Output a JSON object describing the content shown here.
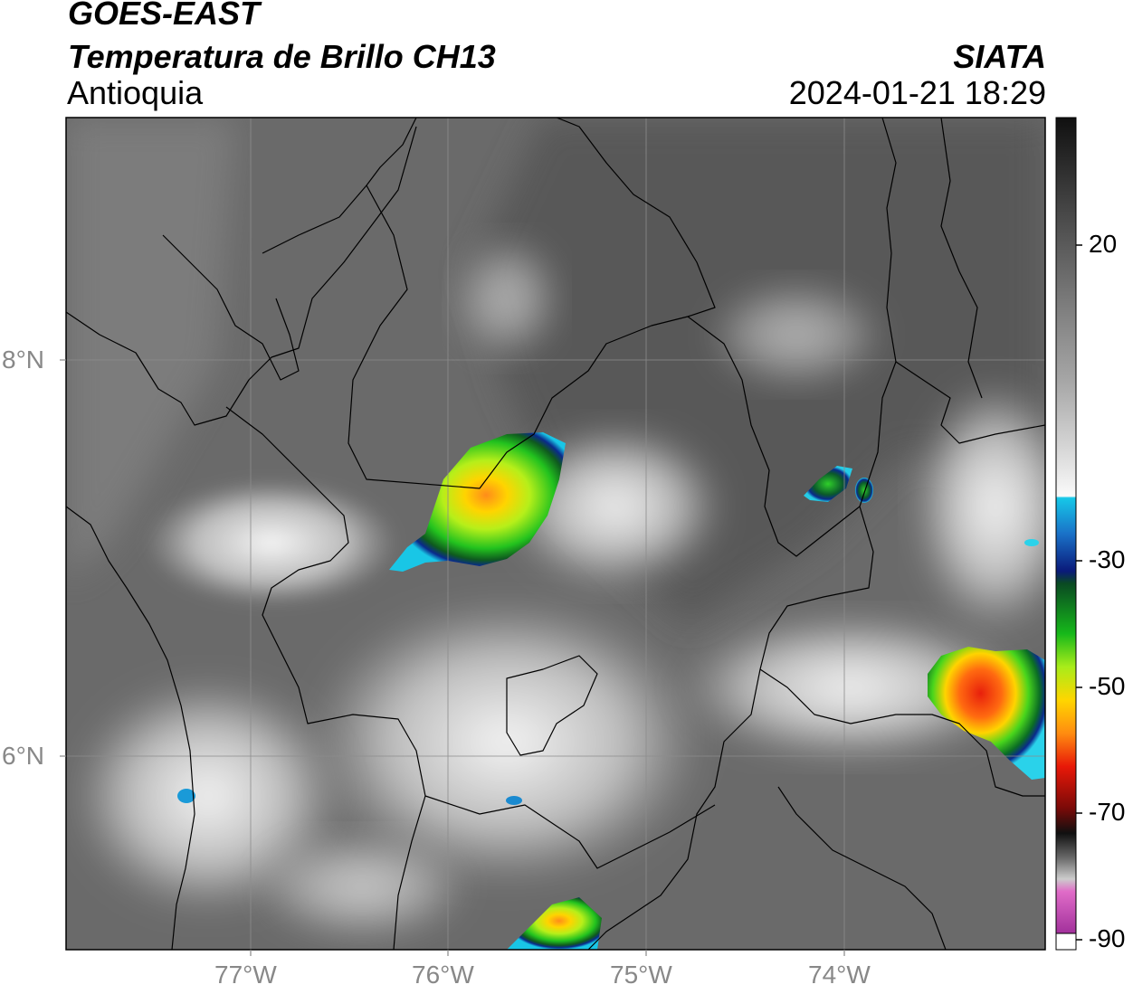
{
  "header": {
    "satellite": "GOES-EAST",
    "product": "Temperatura de Brillo CH13",
    "region": "Antioquia",
    "agency": "SIATA",
    "timestamp": "2024-01-21 18:29"
  },
  "colorbar": {
    "ticks": [
      "20",
      "-30",
      "-50",
      "-70",
      "-90"
    ],
    "tick_values": [
      20,
      -30,
      -50,
      -70,
      -90
    ],
    "range": [
      -90,
      30
    ]
  },
  "axes": {
    "lat_labels": [
      "8°N",
      "6°N"
    ],
    "lon_labels": [
      "77°W",
      "76°W",
      "75°W",
      "74°W"
    ]
  },
  "map": {
    "background": "#6a6a6a",
    "border_color": "#000000",
    "gridline_color": "#9a9a9a"
  }
}
